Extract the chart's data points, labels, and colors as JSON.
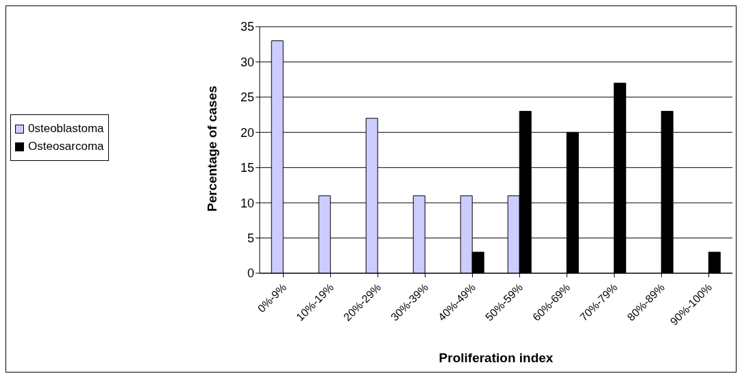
{
  "chart_data": {
    "type": "bar",
    "xlabel": "Proliferation index",
    "ylabel": "Percentage of cases",
    "categories": [
      "0%-9%",
      "10%-19%",
      "20%-29%",
      "30%-39%",
      "40%-49%",
      "50%-59%",
      "60%-69%",
      "70%-79%",
      "80%-89%",
      "90%-100%"
    ],
    "series": [
      {
        "name": "0steoblastoma",
        "color": "#ccccff",
        "values": [
          33,
          11,
          22,
          11,
          11,
          11,
          null,
          null,
          null,
          null
        ]
      },
      {
        "name": "Osteosarcoma",
        "color": "#000000",
        "values": [
          null,
          null,
          null,
          null,
          3,
          23,
          20,
          27,
          23,
          3
        ]
      }
    ],
    "ylim": [
      0,
      35
    ],
    "yticks": [
      0,
      5,
      10,
      15,
      20,
      25,
      30,
      35
    ],
    "grid": "y",
    "legend": "left"
  }
}
